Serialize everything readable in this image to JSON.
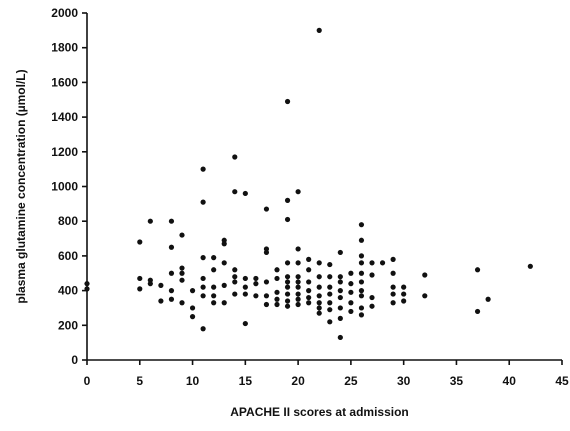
{
  "chart_data": {
    "type": "scatter",
    "title": "",
    "xlabel": "APACHE II scores at admission",
    "ylabel": "plasma glutamine concentration (µmol/L)",
    "xlim": [
      0,
      45
    ],
    "ylim": [
      0,
      2000
    ],
    "xticks": [
      0,
      5,
      10,
      15,
      20,
      25,
      30,
      35,
      40,
      45
    ],
    "yticks": [
      0,
      200,
      400,
      600,
      800,
      1000,
      1200,
      1400,
      1600,
      1800,
      2000
    ],
    "grid": false,
    "series": [
      {
        "points": [
          [
            0,
            440
          ],
          [
            0,
            410
          ],
          [
            5,
            680
          ],
          [
            5,
            470
          ],
          [
            5,
            410
          ],
          [
            6,
            800
          ],
          [
            6,
            460
          ],
          [
            6,
            440
          ],
          [
            7,
            430
          ],
          [
            7,
            340
          ],
          [
            8,
            800
          ],
          [
            8,
            650
          ],
          [
            8,
            500
          ],
          [
            8,
            400
          ],
          [
            8,
            350
          ],
          [
            9,
            720
          ],
          [
            9,
            530
          ],
          [
            9,
            500
          ],
          [
            9,
            460
          ],
          [
            9,
            330
          ],
          [
            10,
            400
          ],
          [
            10,
            300
          ],
          [
            10,
            250
          ],
          [
            11,
            1100
          ],
          [
            11,
            910
          ],
          [
            11,
            590
          ],
          [
            11,
            470
          ],
          [
            11,
            420
          ],
          [
            11,
            370
          ],
          [
            11,
            180
          ],
          [
            12,
            590
          ],
          [
            12,
            520
          ],
          [
            12,
            420
          ],
          [
            12,
            370
          ],
          [
            12,
            330
          ],
          [
            13,
            690
          ],
          [
            13,
            670
          ],
          [
            13,
            560
          ],
          [
            13,
            430
          ],
          [
            13,
            330
          ],
          [
            14,
            1170
          ],
          [
            14,
            970
          ],
          [
            14,
            520
          ],
          [
            14,
            480
          ],
          [
            14,
            450
          ],
          [
            14,
            380
          ],
          [
            15,
            960
          ],
          [
            15,
            470
          ],
          [
            15,
            420
          ],
          [
            15,
            380
          ],
          [
            15,
            210
          ],
          [
            16,
            470
          ],
          [
            16,
            440
          ],
          [
            16,
            370
          ],
          [
            17,
            870
          ],
          [
            17,
            640
          ],
          [
            17,
            620
          ],
          [
            17,
            450
          ],
          [
            17,
            370
          ],
          [
            17,
            320
          ],
          [
            18,
            520
          ],
          [
            18,
            470
          ],
          [
            18,
            390
          ],
          [
            18,
            350
          ],
          [
            18,
            320
          ],
          [
            19,
            1490
          ],
          [
            19,
            920
          ],
          [
            19,
            810
          ],
          [
            19,
            560
          ],
          [
            19,
            480
          ],
          [
            19,
            450
          ],
          [
            19,
            420
          ],
          [
            19,
            380
          ],
          [
            19,
            340
          ],
          [
            19,
            310
          ],
          [
            20,
            970
          ],
          [
            20,
            640
          ],
          [
            20,
            560
          ],
          [
            20,
            480
          ],
          [
            20,
            450
          ],
          [
            20,
            420
          ],
          [
            20,
            380
          ],
          [
            20,
            350
          ],
          [
            20,
            320
          ],
          [
            21,
            580
          ],
          [
            21,
            520
          ],
          [
            21,
            450
          ],
          [
            21,
            400
          ],
          [
            21,
            360
          ],
          [
            21,
            330
          ],
          [
            22,
            1900
          ],
          [
            22,
            560
          ],
          [
            22,
            480
          ],
          [
            22,
            420
          ],
          [
            22,
            370
          ],
          [
            22,
            330
          ],
          [
            22,
            300
          ],
          [
            22,
            270
          ],
          [
            23,
            550
          ],
          [
            23,
            480
          ],
          [
            23,
            420
          ],
          [
            23,
            380
          ],
          [
            23,
            330
          ],
          [
            23,
            290
          ],
          [
            23,
            220
          ],
          [
            24,
            620
          ],
          [
            24,
            480
          ],
          [
            24,
            450
          ],
          [
            24,
            400
          ],
          [
            24,
            360
          ],
          [
            24,
            300
          ],
          [
            24,
            240
          ],
          [
            24,
            130
          ],
          [
            25,
            500
          ],
          [
            25,
            440
          ],
          [
            25,
            390
          ],
          [
            25,
            330
          ],
          [
            25,
            280
          ],
          [
            26,
            780
          ],
          [
            26,
            690
          ],
          [
            26,
            600
          ],
          [
            26,
            560
          ],
          [
            26,
            500
          ],
          [
            26,
            450
          ],
          [
            26,
            400
          ],
          [
            26,
            370
          ],
          [
            26,
            300
          ],
          [
            26,
            260
          ],
          [
            27,
            560
          ],
          [
            27,
            490
          ],
          [
            27,
            360
          ],
          [
            27,
            310
          ],
          [
            28,
            560
          ],
          [
            29,
            580
          ],
          [
            29,
            500
          ],
          [
            29,
            420
          ],
          [
            29,
            380
          ],
          [
            29,
            330
          ],
          [
            30,
            420
          ],
          [
            30,
            380
          ],
          [
            30,
            340
          ],
          [
            32,
            490
          ],
          [
            32,
            370
          ],
          [
            37,
            520
          ],
          [
            37,
            280
          ],
          [
            38,
            350
          ],
          [
            42,
            540
          ]
        ]
      }
    ]
  }
}
